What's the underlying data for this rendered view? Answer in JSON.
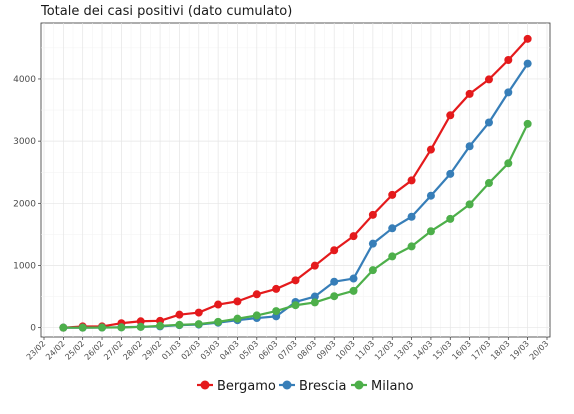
{
  "chart_data": {
    "type": "line",
    "title": "Totale dei casi positivi (dato cumulato)",
    "xlabel": "",
    "ylabel": "",
    "x_tick_labels": [
      "23/02",
      "24/02",
      "25/02",
      "26/02",
      "27/02",
      "28/02",
      "29/02",
      "01/03",
      "02/03",
      "03/03",
      "04/03",
      "05/03",
      "06/03",
      "07/03",
      "08/03",
      "09/03",
      "10/03",
      "11/03",
      "12/03",
      "13/03",
      "14/03",
      "15/03",
      "16/03",
      "17/03",
      "18/03",
      "19/03",
      "20/03"
    ],
    "x": [
      "24/02",
      "25/02",
      "26/02",
      "27/02",
      "28/02",
      "29/02",
      "01/03",
      "02/03",
      "03/03",
      "04/03",
      "05/03",
      "06/03",
      "07/03",
      "08/03",
      "09/03",
      "10/03",
      "11/03",
      "12/03",
      "13/03",
      "14/03",
      "15/03",
      "16/03",
      "17/03",
      "18/03",
      "19/03"
    ],
    "y_ticks": [
      0,
      1000,
      2000,
      3000,
      4000
    ],
    "ylim": [
      -150,
      4900
    ],
    "grid": true,
    "legend_position": "bottom",
    "series": [
      {
        "name": "Bergamo",
        "color": "#e41a1c",
        "values": [
          0,
          20,
          20,
          72,
          103,
          110,
          209,
          243,
          372,
          423,
          537,
          623,
          761,
          997,
          1245,
          1472,
          1815,
          2136,
          2368,
          2864,
          3416,
          3760,
          3993,
          4305,
          4645
        ]
      },
      {
        "name": "Brescia",
        "color": "#377eb8",
        "values": [
          0,
          0,
          2,
          6,
          14,
          20,
          40,
          50,
          80,
          120,
          155,
          182,
          413,
          501,
          739,
          790,
          1351,
          1598,
          1784,
          2122,
          2473,
          2918,
          3300,
          3784,
          4247
        ]
      },
      {
        "name": "Milano",
        "color": "#4daf4a",
        "values": [
          0,
          0,
          2,
          4,
          12,
          30,
          46,
          58,
          93,
          145,
          197,
          267,
          361,
          406,
          506,
          592,
          925,
          1146,
          1307,
          1551,
          1750,
          1983,
          2326,
          2644,
          3278
        ]
      }
    ]
  }
}
